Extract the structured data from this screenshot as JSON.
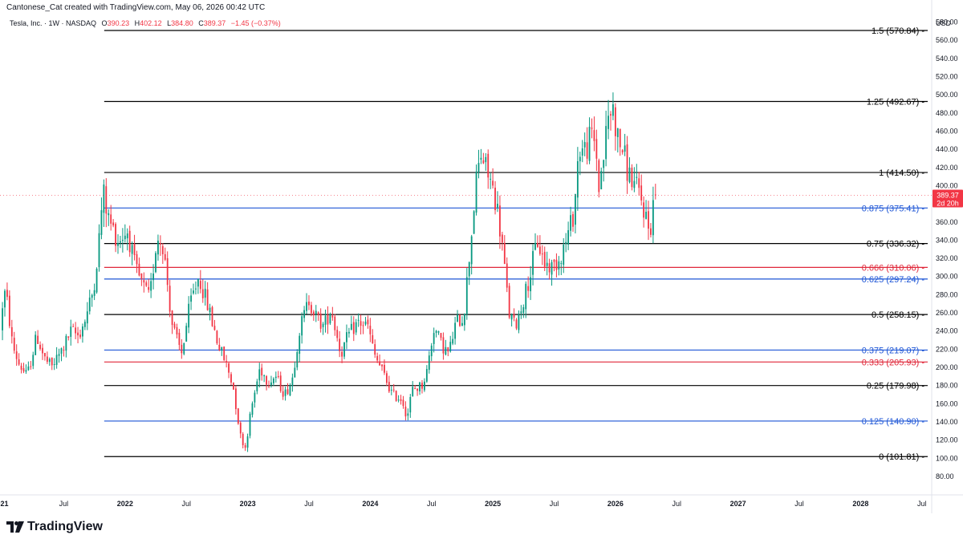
{
  "header": {
    "created_by": "Cantonese_Cat created with TradingView.com, May 06, 2026 00:42 UTC",
    "symbol": "Tesla, Inc. · 1W · NASDAQ",
    "o_label": "O",
    "o_value": "390.23",
    "h_label": "H",
    "h_value": "402.12",
    "l_label": "L",
    "l_value": "384.80",
    "c_label": "C",
    "c_value": "389.37",
    "change": "−1.45 (−0.37%)"
  },
  "price_axis": {
    "currency": "USD",
    "ticks": [
      "580.00",
      "560.00",
      "540.00",
      "520.00",
      "500.00",
      "480.00",
      "460.00",
      "440.00",
      "420.00",
      "400.00",
      "380.00",
      "360.00",
      "340.00",
      "320.00",
      "300.00",
      "280.00",
      "260.00",
      "240.00",
      "220.00",
      "200.00",
      "180.00",
      "160.00",
      "140.00",
      "120.00",
      "100.00",
      "80.00"
    ],
    "last_price_label": "389.37",
    "countdown_label": "2d 20h"
  },
  "footer": {
    "brand": "TradingView"
  },
  "chart_data": {
    "type": "candlestick",
    "timeframe": "1W",
    "ylim": [
      72,
      592
    ],
    "x_ticks": [
      {
        "label": "021",
        "t": 2021.0
      },
      {
        "label": "Jul",
        "t": 2021.5
      },
      {
        "label": "2022",
        "t": 2022.0
      },
      {
        "label": "Jul",
        "t": 2022.5
      },
      {
        "label": "2023",
        "t": 2023.0
      },
      {
        "label": "Jul",
        "t": 2023.5
      },
      {
        "label": "2024",
        "t": 2024.0
      },
      {
        "label": "Jul",
        "t": 2024.5
      },
      {
        "label": "2025",
        "t": 2025.0
      },
      {
        "label": "Jul",
        "t": 2025.5
      },
      {
        "label": "2026",
        "t": 2026.0
      },
      {
        "label": "Jul",
        "t": 2026.5
      },
      {
        "label": "2027",
        "t": 2027.0
      },
      {
        "label": "Jul",
        "t": 2027.5
      },
      {
        "label": "2028",
        "t": 2028.0
      },
      {
        "label": "Jul",
        "t": 2028.5
      }
    ],
    "fib_levels": [
      {
        "label": "1.5 (570.84)",
        "value": 570.84,
        "color": "#000000"
      },
      {
        "label": "1.25 (492.67)",
        "value": 492.67,
        "color": "#000000"
      },
      {
        "label": "1 (414.50)",
        "value": 414.5,
        "color": "#000000"
      },
      {
        "label": "0.875 (375.41)",
        "value": 375.41,
        "color": "#1e56d6"
      },
      {
        "label": "0.75 (336.32)",
        "value": 336.32,
        "color": "#000000"
      },
      {
        "label": "0.666 (310.06)",
        "value": 310.06,
        "color": "#e0283a"
      },
      {
        "label": "0.625 (297.24)",
        "value": 297.24,
        "color": "#1e56d6"
      },
      {
        "label": "0.5 (258.15)",
        "value": 258.15,
        "color": "#000000"
      },
      {
        "label": "0.375 (219.07)",
        "value": 219.07,
        "color": "#1e56d6"
      },
      {
        "label": "0.333 (205.93)",
        "value": 205.93,
        "color": "#e0283a"
      },
      {
        "label": "0.25 (179.98)",
        "value": 179.98,
        "color": "#000000"
      },
      {
        "label": "0.125 (140.90)",
        "value": 140.9,
        "color": "#1e56d6"
      },
      {
        "label": "0 (101.81)",
        "value": 101.81,
        "color": "#000000"
      }
    ],
    "fib_start_t": 2021.83,
    "last_price": 389.37,
    "colors": {
      "up": "#089981",
      "down": "#f23645",
      "grid": "#f0f3fa",
      "axis_text": "#131722"
    },
    "path_anchors": [
      [
        2021.0,
        240
      ],
      [
        2021.03,
        285
      ],
      [
        2021.06,
        270
      ],
      [
        2021.1,
        225
      ],
      [
        2021.15,
        205
      ],
      [
        2021.22,
        190
      ],
      [
        2021.3,
        235
      ],
      [
        2021.36,
        210
      ],
      [
        2021.42,
        200
      ],
      [
        2021.5,
        218
      ],
      [
        2021.58,
        240
      ],
      [
        2021.64,
        235
      ],
      [
        2021.7,
        255
      ],
      [
        2021.76,
        285
      ],
      [
        2021.8,
        330
      ],
      [
        2021.84,
        395
      ],
      [
        2021.88,
        365
      ],
      [
        2021.96,
        340
      ],
      [
        2022.04,
        350
      ],
      [
        2022.1,
        310
      ],
      [
        2022.16,
        290
      ],
      [
        2022.22,
        275
      ],
      [
        2022.28,
        345
      ],
      [
        2022.33,
        335
      ],
      [
        2022.4,
        250
      ],
      [
        2022.44,
        230
      ],
      [
        2022.48,
        215
      ],
      [
        2022.55,
        270
      ],
      [
        2022.62,
        300
      ],
      [
        2022.7,
        265
      ],
      [
        2022.78,
        225
      ],
      [
        2022.84,
        205
      ],
      [
        2022.9,
        180
      ],
      [
        2022.96,
        125
      ],
      [
        2023.0,
        112
      ],
      [
        2023.05,
        155
      ],
      [
        2023.12,
        200
      ],
      [
        2023.18,
        185
      ],
      [
        2023.25,
        190
      ],
      [
        2023.32,
        170
      ],
      [
        2023.38,
        185
      ],
      [
        2023.44,
        240
      ],
      [
        2023.52,
        275
      ],
      [
        2023.58,
        255
      ],
      [
        2023.64,
        245
      ],
      [
        2023.7,
        265
      ],
      [
        2023.78,
        215
      ],
      [
        2023.84,
        235
      ],
      [
        2023.92,
        250
      ],
      [
        2024.0,
        245
      ],
      [
        2024.05,
        215
      ],
      [
        2024.12,
        195
      ],
      [
        2024.2,
        170
      ],
      [
        2024.28,
        165
      ],
      [
        2024.32,
        145
      ],
      [
        2024.36,
        175
      ],
      [
        2024.44,
        180
      ],
      [
        2024.48,
        195
      ],
      [
        2024.54,
        245
      ],
      [
        2024.6,
        225
      ],
      [
        2024.66,
        215
      ],
      [
        2024.72,
        250
      ],
      [
        2024.78,
        255
      ],
      [
        2024.84,
        340
      ],
      [
        2024.88,
        400
      ],
      [
        2024.92,
        435
      ],
      [
        2024.96,
        420
      ],
      [
        2025.0,
        405
      ],
      [
        2025.05,
        380
      ],
      [
        2025.1,
        330
      ],
      [
        2025.15,
        260
      ],
      [
        2025.2,
        245
      ],
      [
        2025.26,
        270
      ],
      [
        2025.32,
        300
      ],
      [
        2025.38,
        340
      ],
      [
        2025.44,
        315
      ],
      [
        2025.5,
        310
      ],
      [
        2025.56,
        320
      ],
      [
        2025.62,
        340
      ],
      [
        2025.68,
        370
      ],
      [
        2025.72,
        440
      ],
      [
        2025.78,
        440
      ],
      [
        2025.82,
        455
      ],
      [
        2025.86,
        445
      ],
      [
        2025.88,
        395
      ],
      [
        2025.92,
        430
      ],
      [
        2025.96,
        475
      ],
      [
        2026.0,
        485
      ],
      [
        2026.04,
        450
      ],
      [
        2026.08,
        440
      ],
      [
        2026.12,
        415
      ],
      [
        2026.16,
        405
      ],
      [
        2026.2,
        395
      ],
      [
        2026.24,
        380
      ],
      [
        2026.28,
        360
      ],
      [
        2026.3,
        345
      ],
      [
        2026.32,
        375
      ],
      [
        2026.34,
        389.37
      ]
    ]
  }
}
